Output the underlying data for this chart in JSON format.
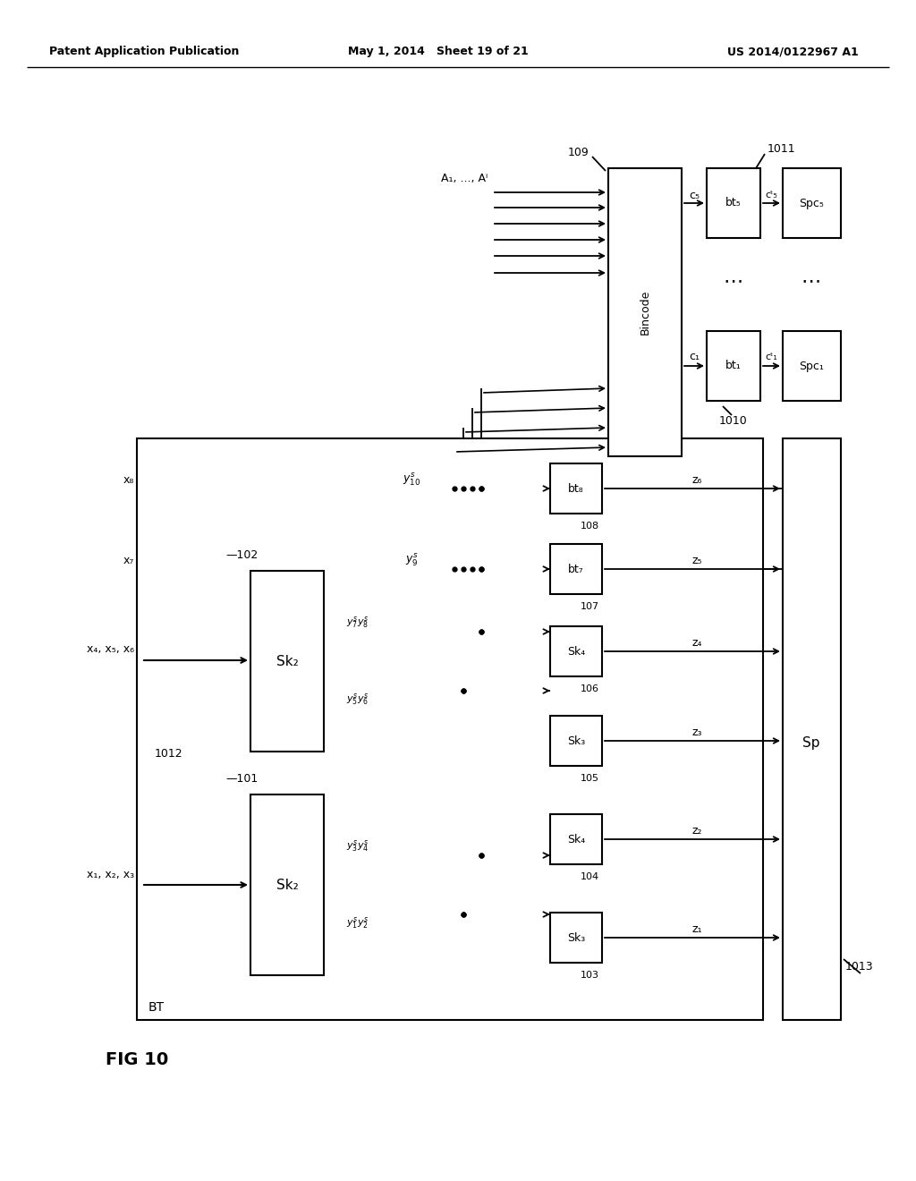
{
  "bg": "#ffffff",
  "header_left": "Patent Application Publication",
  "header_mid": "May 1, 2014   Sheet 19 of 21",
  "header_right": "US 2014/0122967 A1",
  "fig_label": "FIG 10"
}
